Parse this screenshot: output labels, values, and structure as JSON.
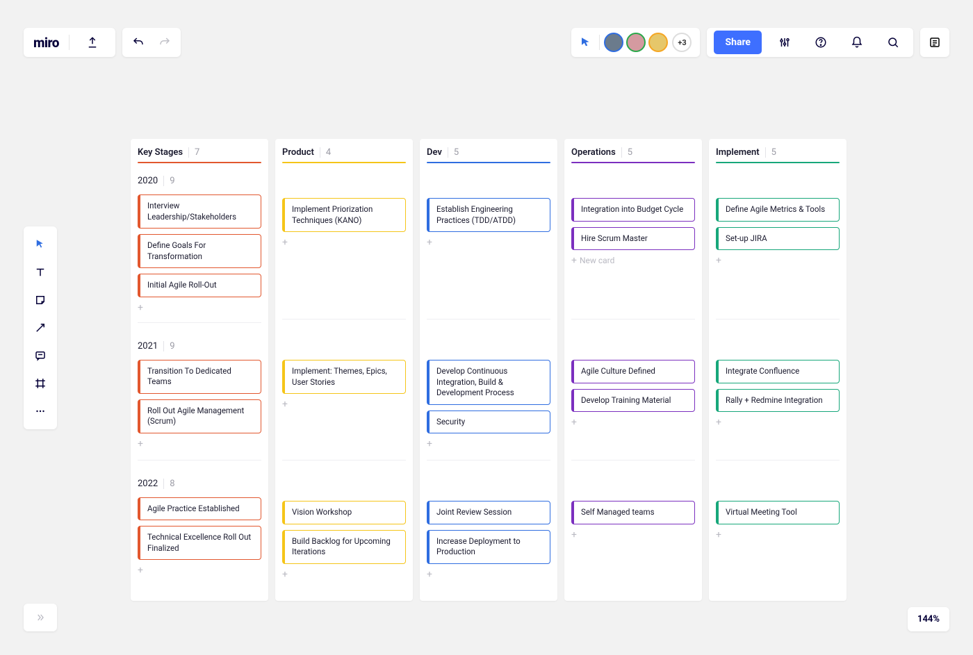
{
  "app": {
    "logo": "miro"
  },
  "topbar": {
    "share_label": "Share",
    "presence_overflow": "+3",
    "avatars": [
      {
        "bg": "#6b7b8c",
        "ring": "#2f6de0"
      },
      {
        "bg": "#d49aa0",
        "ring": "#2aa84a"
      },
      {
        "bg": "#e6c76a",
        "ring": "#f5a623"
      }
    ]
  },
  "zoom": "144%",
  "columns": [
    {
      "name": "Key Stages",
      "count": 7,
      "accent": "#e2572e"
    },
    {
      "name": "Product",
      "count": 4,
      "accent": "#f5c518"
    },
    {
      "name": "Dev",
      "count": 5,
      "accent": "#2f6de0"
    },
    {
      "name": "Operations",
      "count": 5,
      "accent": "#7b2fbf"
    },
    {
      "name": "Implement",
      "count": 5,
      "accent": "#17a77a"
    }
  ],
  "lanes": [
    {
      "year": "2020",
      "count": 9
    },
    {
      "year": "2021",
      "count": 9
    },
    {
      "year": "2022",
      "count": 8
    }
  ],
  "cards": {
    "key_stages": {
      "y2020": [
        "Interview Leadership/Stakeholders",
        "Define Goals For Transformation",
        "Initial Agile Roll-Out"
      ],
      "y2021": [
        "Transition To Dedicated Teams",
        "Roll Out Agile Management (Scrum)"
      ],
      "y2022": [
        "Agile Practice Established",
        "Technical Excellence Roll Out Finalized"
      ]
    },
    "product": {
      "y2020": [
        "Implement Priorization Techniques (KANO)"
      ],
      "y2021": [
        "Implement: Themes, Epics, User Stories"
      ],
      "y2022": [
        "Vision Workshop",
        "Build Backlog for Upcoming Iterations"
      ]
    },
    "dev": {
      "y2020": [
        "Establish Engineering Practices (TDD/ATDD)"
      ],
      "y2021": [
        "Develop Continuous Integration, Build & Development Process",
        "Security"
      ],
      "y2022": [
        "Joint Review Session",
        "Increase Deployment to Production"
      ]
    },
    "operations": {
      "y2020": [
        "Integration into Budget Cycle",
        "Hire Scrum Master"
      ],
      "y2021": [
        "Agile Culture Defined",
        "Develop Training Material"
      ],
      "y2022": [
        "Self Managed teams"
      ]
    },
    "implement": {
      "y2020": [
        "Define Agile Metrics & Tools",
        "Set-up JIRA"
      ],
      "y2021": [
        "Integrate Confluence",
        "Rally + Redmine Integration"
      ],
      "y2022": [
        "Virtual Meeting Tool"
      ]
    }
  },
  "add_card_label": "New card",
  "style": {
    "card_heights": {
      "one_line": 33,
      "two_line": 46
    },
    "lane_block_heights": {
      "y2020": 160,
      "y2021": 130,
      "y2022": 130
    }
  }
}
